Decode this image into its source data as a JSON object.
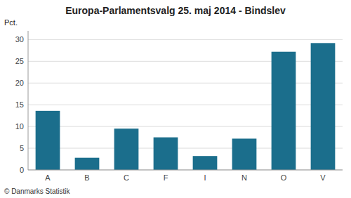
{
  "chart_data": {
    "type": "bar",
    "title": "Europa-Parlamentsvalg 25. maj 2014 - Bindslev",
    "ylabel": "Pct.",
    "footer": "© Danmarks Statistik",
    "categories": [
      "A",
      "B",
      "C",
      "F",
      "I",
      "N",
      "O",
      "V"
    ],
    "values": [
      13.6,
      2.8,
      9.5,
      7.5,
      3.2,
      7.2,
      27.2,
      29.2
    ],
    "color": "#1b6e8c",
    "ylim": [
      0,
      32
    ],
    "yticks": [
      0,
      5,
      10,
      15,
      20,
      25,
      30
    ],
    "grid": true
  }
}
